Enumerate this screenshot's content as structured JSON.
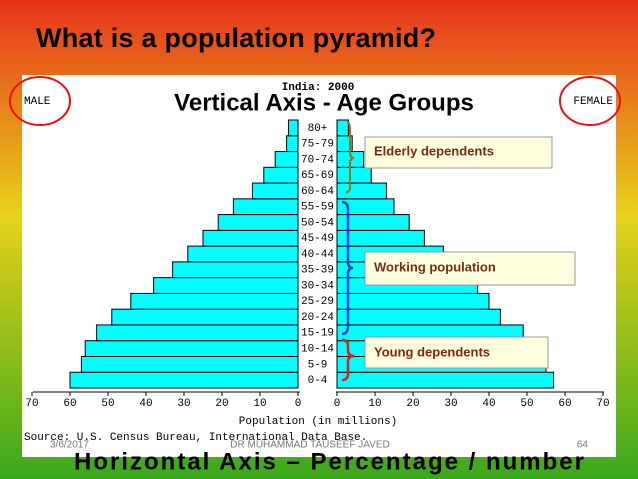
{
  "slide_title": "What is a population pyramid?",
  "chart_data": {
    "type": "pyramid",
    "title": "India: 2000",
    "annotation": "Vertical Axis - Age Groups",
    "xlabel": "Population (in millions)",
    "source": "Source: U.S. Census Bureau, International Data Base.",
    "categories": [
      "0-4",
      "5-9",
      "10-14",
      "15-19",
      "20-24",
      "25-29",
      "30-34",
      "35-39",
      "40-44",
      "45-49",
      "50-54",
      "55-59",
      "60-64",
      "65-69",
      "70-74",
      "75-79",
      "80+"
    ],
    "series": [
      {
        "name": "MALE",
        "color": "#00ffff",
        "values": [
          60,
          57,
          56,
          53,
          49,
          44,
          38,
          33,
          29,
          25,
          21,
          17,
          12,
          9,
          6,
          3,
          2.5
        ]
      },
      {
        "name": "FEMALE",
        "color": "#00ffff",
        "values": [
          57,
          55,
          53,
          49,
          43,
          40,
          37,
          32,
          28,
          23,
          19,
          15,
          13,
          9,
          7,
          4,
          3
        ]
      }
    ],
    "xlim": [
      0,
      70
    ],
    "xticks": [
      0,
      10,
      20,
      30,
      40,
      50,
      60,
      70
    ],
    "groups": [
      "Elderly dependents",
      "Working population",
      "Young dependents"
    ]
  },
  "footer": {
    "date": "3/6/2017",
    "author": "DR MUHAMMAD TAUSEEF JAVED",
    "page": "64",
    "caption": "Horizontal Axis – Percentage / number"
  }
}
